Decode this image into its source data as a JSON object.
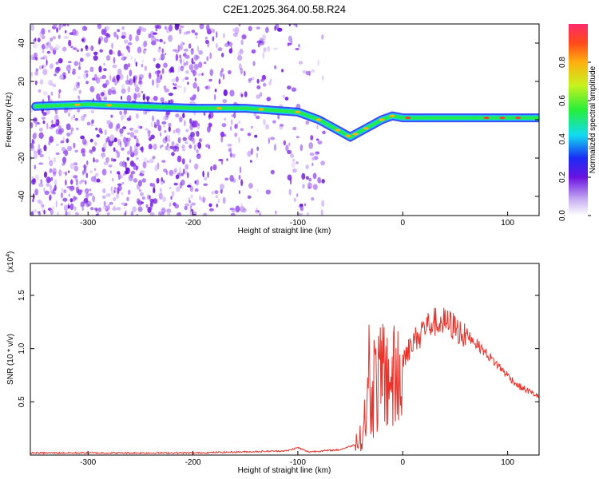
{
  "figure_title": "C2E1.2025.364.00.58.R24",
  "chart_data": [
    {
      "type": "heatmap",
      "title": "C2E1.2025.364.00.58.R24",
      "xlabel": "Height of straight line (km)",
      "ylabel": "Frequency (Hz)",
      "xlim": [
        -355,
        130
      ],
      "ylim": [
        -50,
        50
      ],
      "x_ticks": [
        -300,
        -200,
        -100,
        0,
        100
      ],
      "x_tick_labels": [
        "-300",
        "-200",
        "-100",
        "0",
        "100"
      ],
      "y_ticks": [
        -40,
        -20,
        0,
        20,
        40
      ],
      "y_tick_labels": [
        "-40",
        "-20",
        "0",
        "20",
        "40"
      ],
      "colorbar": {
        "label": "Normalized spectral amplitude",
        "range": [
          0,
          1
        ],
        "ticks": [
          0.0,
          0.2,
          0.4,
          0.6,
          0.8
        ],
        "tick_labels": [
          "0.0",
          "0.2",
          "0.4",
          "0.6",
          "0.8"
        ]
      },
      "ridge": {
        "description_points_x": [
          -350,
          -300,
          -250,
          -200,
          -175,
          -150,
          -125,
          -100,
          -80,
          -60,
          -50,
          -40,
          -30,
          -20,
          -10,
          0,
          25,
          50,
          75,
          100,
          125
        ],
        "description_points_y": [
          7,
          8,
          7,
          6,
          6,
          6,
          5,
          4,
          0,
          -6,
          -9,
          -6,
          -3,
          0,
          2,
          1,
          1,
          1,
          1,
          1,
          1
        ]
      }
    },
    {
      "type": "line",
      "xlabel": "Height of straight line (km)",
      "ylabel": "SNR (10 * v/v)",
      "y_scale_label": "(x10",
      "y_scale_exp": "4",
      "xlim": [
        -355,
        130
      ],
      "ylim": [
        0,
        1.8
      ],
      "x_ticks": [
        -300,
        -200,
        -100,
        0,
        100
      ],
      "x_tick_labels": [
        "-300",
        "-200",
        "-100",
        "0",
        "100"
      ],
      "y_ticks": [
        0.5,
        1.0,
        1.5
      ],
      "y_tick_labels": [
        "0.5",
        "1.0",
        "1.5"
      ],
      "series": [
        {
          "name": "SNR",
          "color": "#e8322a",
          "x": [
            -355,
            -300,
            -250,
            -200,
            -150,
            -110,
            -100,
            -90,
            -60,
            -45,
            -38,
            -35,
            -30,
            -25,
            -20,
            -15,
            -10,
            0,
            10,
            20,
            30,
            40,
            50,
            60,
            70,
            80,
            90,
            100,
            110,
            120,
            130
          ],
          "y": [
            0.02,
            0.02,
            0.02,
            0.02,
            0.03,
            0.04,
            0.07,
            0.03,
            0.05,
            0.1,
            0.3,
            0.6,
            0.9,
            1.0,
            0.95,
            1.1,
            1.0,
            0.95,
            1.1,
            1.25,
            1.3,
            1.3,
            1.25,
            1.15,
            1.05,
            0.95,
            0.85,
            0.75,
            0.65,
            0.6,
            0.55
          ]
        }
      ]
    }
  ]
}
